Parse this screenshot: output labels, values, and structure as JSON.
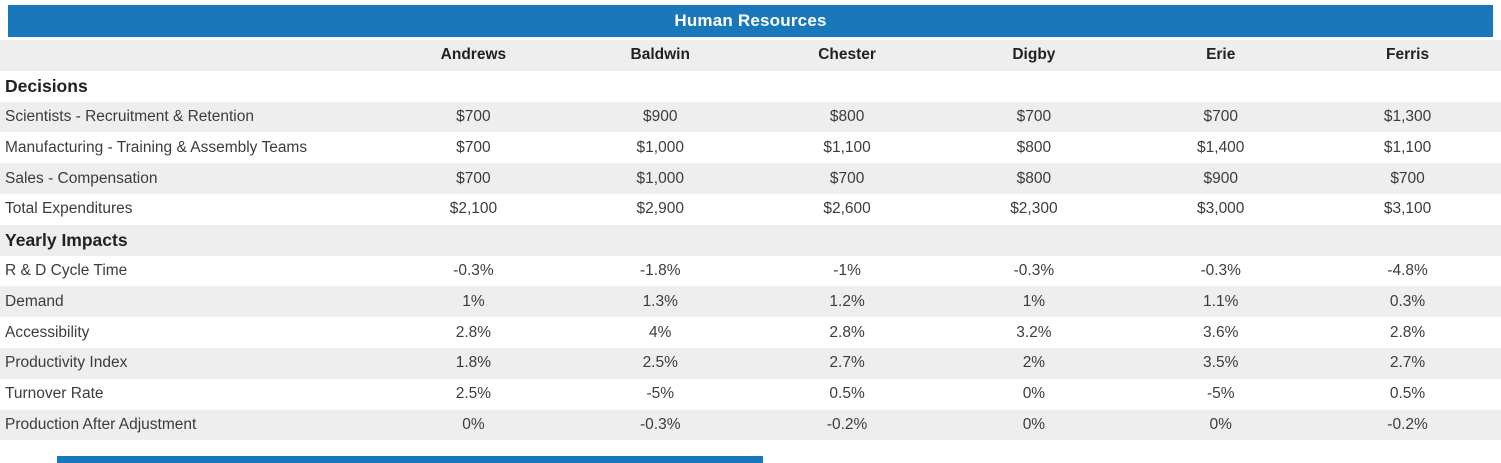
{
  "title": "Human Resources",
  "columns": [
    "Andrews",
    "Baldwin",
    "Chester",
    "Digby",
    "Erie",
    "Ferris"
  ],
  "sections": [
    {
      "name": "Decisions",
      "rows": [
        {
          "label": "Scientists - Recruitment & Retention",
          "values": [
            "$700",
            "$900",
            "$800",
            "$700",
            "$700",
            "$1,300"
          ]
        },
        {
          "label": "Manufacturing - Training & Assembly Teams",
          "values": [
            "$700",
            "$1,000",
            "$1,100",
            "$800",
            "$1,400",
            "$1,100"
          ]
        },
        {
          "label": "Sales - Compensation",
          "values": [
            "$700",
            "$1,000",
            "$700",
            "$800",
            "$900",
            "$700"
          ]
        },
        {
          "label": "Total Expenditures",
          "values": [
            "$2,100",
            "$2,900",
            "$2,600",
            "$2,300",
            "$3,000",
            "$3,100"
          ]
        }
      ]
    },
    {
      "name": "Yearly Impacts",
      "rows": [
        {
          "label": "R & D Cycle Time",
          "values": [
            "-0.3%",
            "-1.8%",
            "-1%",
            "-0.3%",
            "-0.3%",
            "-4.8%"
          ]
        },
        {
          "label": "Demand",
          "values": [
            "1%",
            "1.3%",
            "1.2%",
            "1%",
            "1.1%",
            "0.3%"
          ]
        },
        {
          "label": "Accessibility",
          "values": [
            "2.8%",
            "4%",
            "2.8%",
            "3.2%",
            "3.6%",
            "2.8%"
          ]
        },
        {
          "label": "Productivity Index",
          "values": [
            "1.8%",
            "2.5%",
            "2.7%",
            "2%",
            "3.5%",
            "2.7%"
          ]
        },
        {
          "label": "Turnover Rate",
          "values": [
            "2.5%",
            "-5%",
            "0.5%",
            "0%",
            "-5%",
            "0.5%"
          ]
        },
        {
          "label": "Production After Adjustment",
          "values": [
            "0%",
            "-0.3%",
            "-0.2%",
            "0%",
            "0%",
            "-0.2%"
          ]
        }
      ]
    }
  ],
  "colors": {
    "accent_blue": "#1878B9",
    "stripe_gray": "#EEEEEE",
    "text_dark": "#3C3C3C"
  }
}
